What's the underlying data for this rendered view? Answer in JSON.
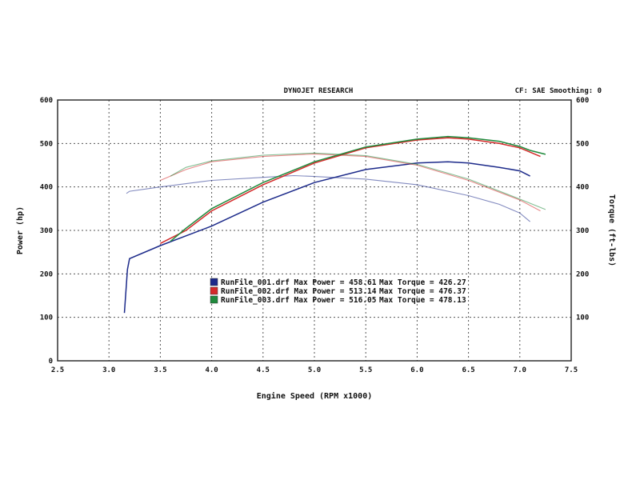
{
  "header": {
    "title": "DYNOJET RESEARCH",
    "settings": "CF: SAE  Smoothing: 0"
  },
  "chart_data": {
    "type": "line",
    "title": "DYNOJET RESEARCH",
    "xlabel": "Engine Speed (RPM x1000)",
    "ylabel_left": "Power (hp)",
    "ylabel_right": "Torque (ft-lbs)",
    "xlim": [
      2.5,
      7.5
    ],
    "ylim": [
      0,
      600
    ],
    "x_ticks": [
      "2.5",
      "3.0",
      "3.5",
      "4.0",
      "4.5",
      "5.0",
      "5.5",
      "6.0",
      "6.5",
      "7.0",
      "7.5"
    ],
    "y_ticks_left": [
      "0",
      "100",
      "200",
      "300",
      "400",
      "500",
      "600"
    ],
    "y_ticks_right": [
      "100",
      "200",
      "300",
      "400",
      "500",
      "600"
    ],
    "grid": true,
    "legend_position": "center-left",
    "series": [
      {
        "name": "RunFile_001.drf",
        "color": "#1c2a8a",
        "max_power_label": "Max Power = 458.61",
        "max_torque_label": "Max Torque = 426.27",
        "power": {
          "x": [
            3.15,
            3.18,
            3.2,
            3.5,
            4.0,
            4.5,
            5.0,
            5.5,
            6.0,
            6.3,
            6.5,
            6.8,
            7.0,
            7.1
          ],
          "y": [
            110,
            210,
            235,
            265,
            310,
            365,
            410,
            440,
            455,
            458,
            455,
            445,
            437,
            425
          ]
        },
        "torque": {
          "x": [
            3.17,
            3.2,
            3.5,
            4.0,
            4.5,
            4.8,
            5.0,
            5.5,
            6.0,
            6.5,
            6.8,
            7.0,
            7.1
          ],
          "y": [
            385,
            390,
            400,
            415,
            422,
            426,
            424,
            418,
            405,
            380,
            360,
            340,
            320
          ]
        }
      },
      {
        "name": "RunFile_002.drf",
        "color": "#d42a2a",
        "max_power_label": "Max Power = 513.14",
        "max_torque_label": "Max Torque = 476.37",
        "power": {
          "x": [
            3.5,
            3.75,
            4.0,
            4.5,
            5.0,
            5.5,
            6.0,
            6.3,
            6.5,
            6.8,
            7.0,
            7.1,
            7.2
          ],
          "y": [
            270,
            300,
            345,
            405,
            455,
            490,
            508,
            513,
            510,
            500,
            490,
            480,
            470
          ]
        },
        "torque": {
          "x": [
            3.5,
            3.75,
            4.0,
            4.5,
            5.0,
            5.5,
            6.0,
            6.5,
            7.0,
            7.2
          ],
          "y": [
            415,
            440,
            458,
            470,
            476,
            470,
            450,
            415,
            370,
            345
          ]
        }
      },
      {
        "name": "RunFile_003.drf",
        "color": "#1f8a3c",
        "max_power_label": "Max Power = 516.05",
        "max_torque_label": "Max Torque = 478.13",
        "power": {
          "x": [
            3.6,
            3.75,
            4.0,
            4.5,
            5.0,
            5.5,
            6.0,
            6.3,
            6.5,
            6.8,
            7.0,
            7.1,
            7.25
          ],
          "y": [
            275,
            305,
            350,
            410,
            458,
            492,
            510,
            516,
            513,
            505,
            493,
            484,
            475
          ]
        },
        "torque": {
          "x": [
            3.6,
            3.75,
            4.0,
            4.5,
            5.0,
            5.5,
            6.0,
            6.5,
            7.0,
            7.25
          ],
          "y": [
            425,
            445,
            460,
            473,
            478,
            472,
            452,
            418,
            372,
            348
          ]
        }
      }
    ]
  }
}
